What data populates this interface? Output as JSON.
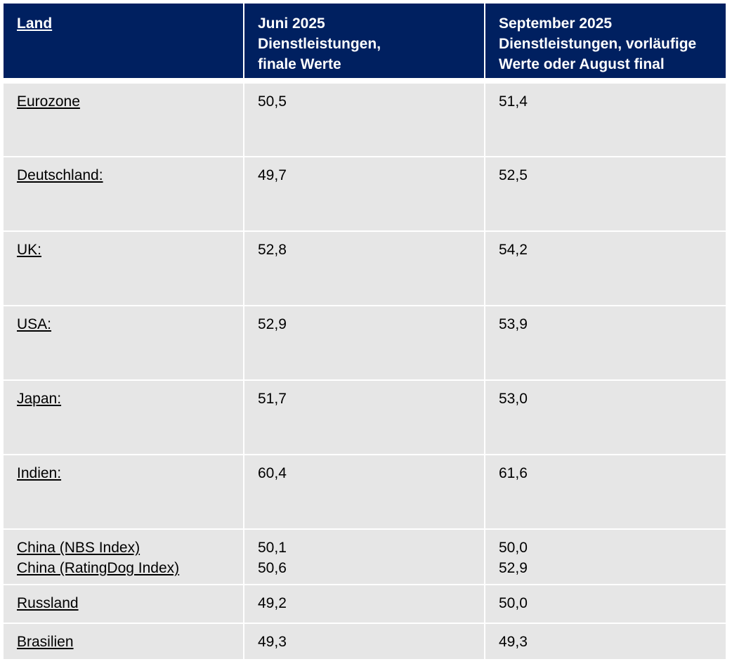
{
  "table": {
    "header": [
      [
        "Land"
      ],
      [
        "Juni 2025",
        "Dienstleistungen,",
        "finale Werte"
      ],
      [
        "September 2025",
        "Dienstleistungen, vorläufige",
        "Werte oder August final"
      ]
    ],
    "rows": [
      [
        [
          "Eurozone"
        ],
        [
          "50,5"
        ],
        [
          "51,4"
        ]
      ],
      [
        [
          "Deutschland:"
        ],
        [
          "49,7"
        ],
        [
          "52,5"
        ]
      ],
      [
        [
          "UK:"
        ],
        [
          "52,8"
        ],
        [
          "54,2"
        ]
      ],
      [
        [
          "USA:"
        ],
        [
          "52,9"
        ],
        [
          "53,9"
        ]
      ],
      [
        [
          "Japan:"
        ],
        [
          "51,7"
        ],
        [
          "53,0"
        ]
      ],
      [
        [
          "Indien:"
        ],
        [
          "60,4"
        ],
        [
          "61,6"
        ]
      ],
      [
        [
          "China (NBS Index)",
          "China (RatingDog Index)"
        ],
        [
          "50,1",
          "50,6"
        ],
        [
          "50,0",
          "52,9"
        ]
      ],
      [
        [
          "Russland"
        ],
        [
          "49,2"
        ],
        [
          "50,0"
        ]
      ],
      [
        [
          "Brasilien"
        ],
        [
          "49,3"
        ],
        [
          "49,3"
        ]
      ]
    ]
  }
}
